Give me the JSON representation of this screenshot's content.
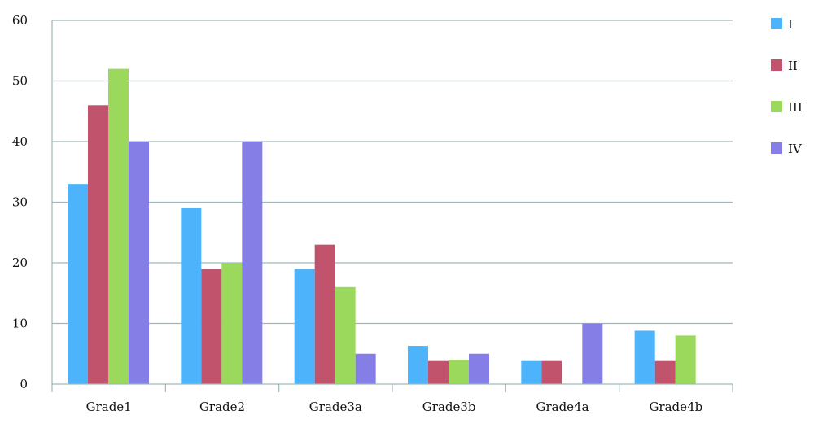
{
  "chart_data": {
    "type": "bar",
    "categories": [
      "Grade1",
      "Grade2",
      "Grade3a",
      "Grade3b",
      "Grade4a",
      "Grade4b"
    ],
    "series": [
      {
        "name": "I",
        "color": "#4db3fb",
        "values": [
          33,
          29,
          19,
          6.3,
          3.8,
          8.8
        ]
      },
      {
        "name": "II",
        "color": "#c1536c",
        "values": [
          46,
          19,
          23,
          3.8,
          3.8,
          3.8
        ]
      },
      {
        "name": "III",
        "color": "#9ad95c",
        "values": [
          52,
          20,
          16,
          4,
          0,
          8
        ]
      },
      {
        "name": "IV",
        "color": "#857ee6",
        "values": [
          40,
          40,
          5,
          5,
          10,
          0
        ]
      }
    ],
    "ylim": [
      0,
      60
    ],
    "yticks": [
      0,
      10,
      20,
      30,
      40,
      50,
      60
    ],
    "grid": true,
    "legend_position": "right",
    "title": "",
    "xlabel": "",
    "ylabel": ""
  }
}
